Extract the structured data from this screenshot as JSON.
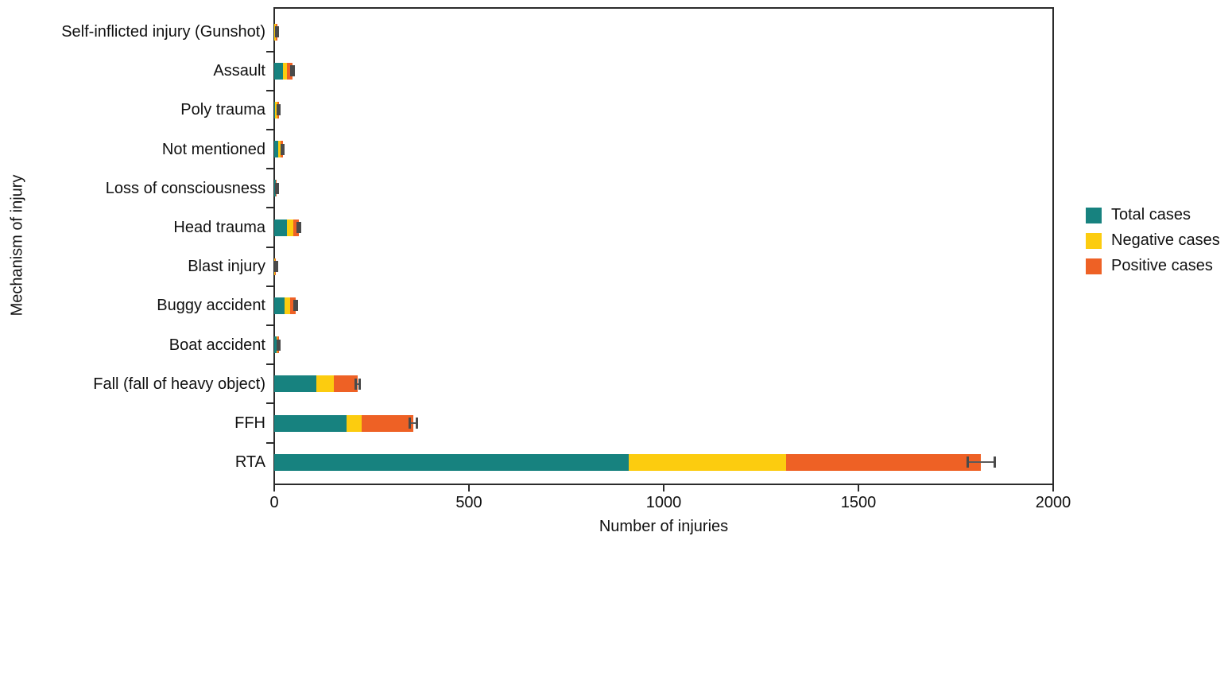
{
  "chart_data": {
    "type": "bar",
    "orientation": "horizontal",
    "stacked": true,
    "title": "",
    "xlabel": "Number of injuries",
    "ylabel": "Mechanism of injury",
    "xlim": [
      0,
      2000
    ],
    "xticks": [
      0,
      500,
      1000,
      1500,
      2000
    ],
    "xtick_labels": [
      "0",
      "500",
      "1000",
      "1500",
      "2000"
    ],
    "grid": false,
    "legend_position": "right-outside",
    "categories": [
      "Self-inflicted injury (Gunshot)",
      "Assault",
      "Poly trauma",
      "Not mentioned",
      "Loss of consciousness",
      "Head trauma",
      "Blast injury",
      "Buggy accident",
      "Boat accident",
      "Fall (fall of heavy object)",
      "FFH",
      "RTA"
    ],
    "series": [
      {
        "name": "Total cases",
        "color": "#17827F",
        "values": [
          1,
          22,
          3,
          11,
          4,
          33,
          1,
          26,
          7,
          108,
          185,
          910
        ]
      },
      {
        "name": "Negative cases",
        "color": "#FCCC0F",
        "values": [
          4,
          10,
          5,
          5,
          1,
          15,
          1,
          15,
          2,
          46,
          40,
          405
        ]
      },
      {
        "name": "Positive cases",
        "color": "#EE6125",
        "values": [
          3,
          15,
          4,
          6,
          2,
          15,
          3,
          15,
          3,
          60,
          132,
          500
        ]
      }
    ],
    "error_bars": {
      "color": "#5a5a5a",
      "values": [
        2,
        3,
        2,
        2,
        2,
        3,
        2,
        3,
        2,
        5,
        10,
        35
      ]
    }
  },
  "legend": {
    "items": [
      {
        "label": "Total cases",
        "color": "#17827F"
      },
      {
        "label": "Negative cases",
        "color": "#FCCC0F"
      },
      {
        "label": "Positive cases",
        "color": "#EE6125"
      }
    ]
  }
}
